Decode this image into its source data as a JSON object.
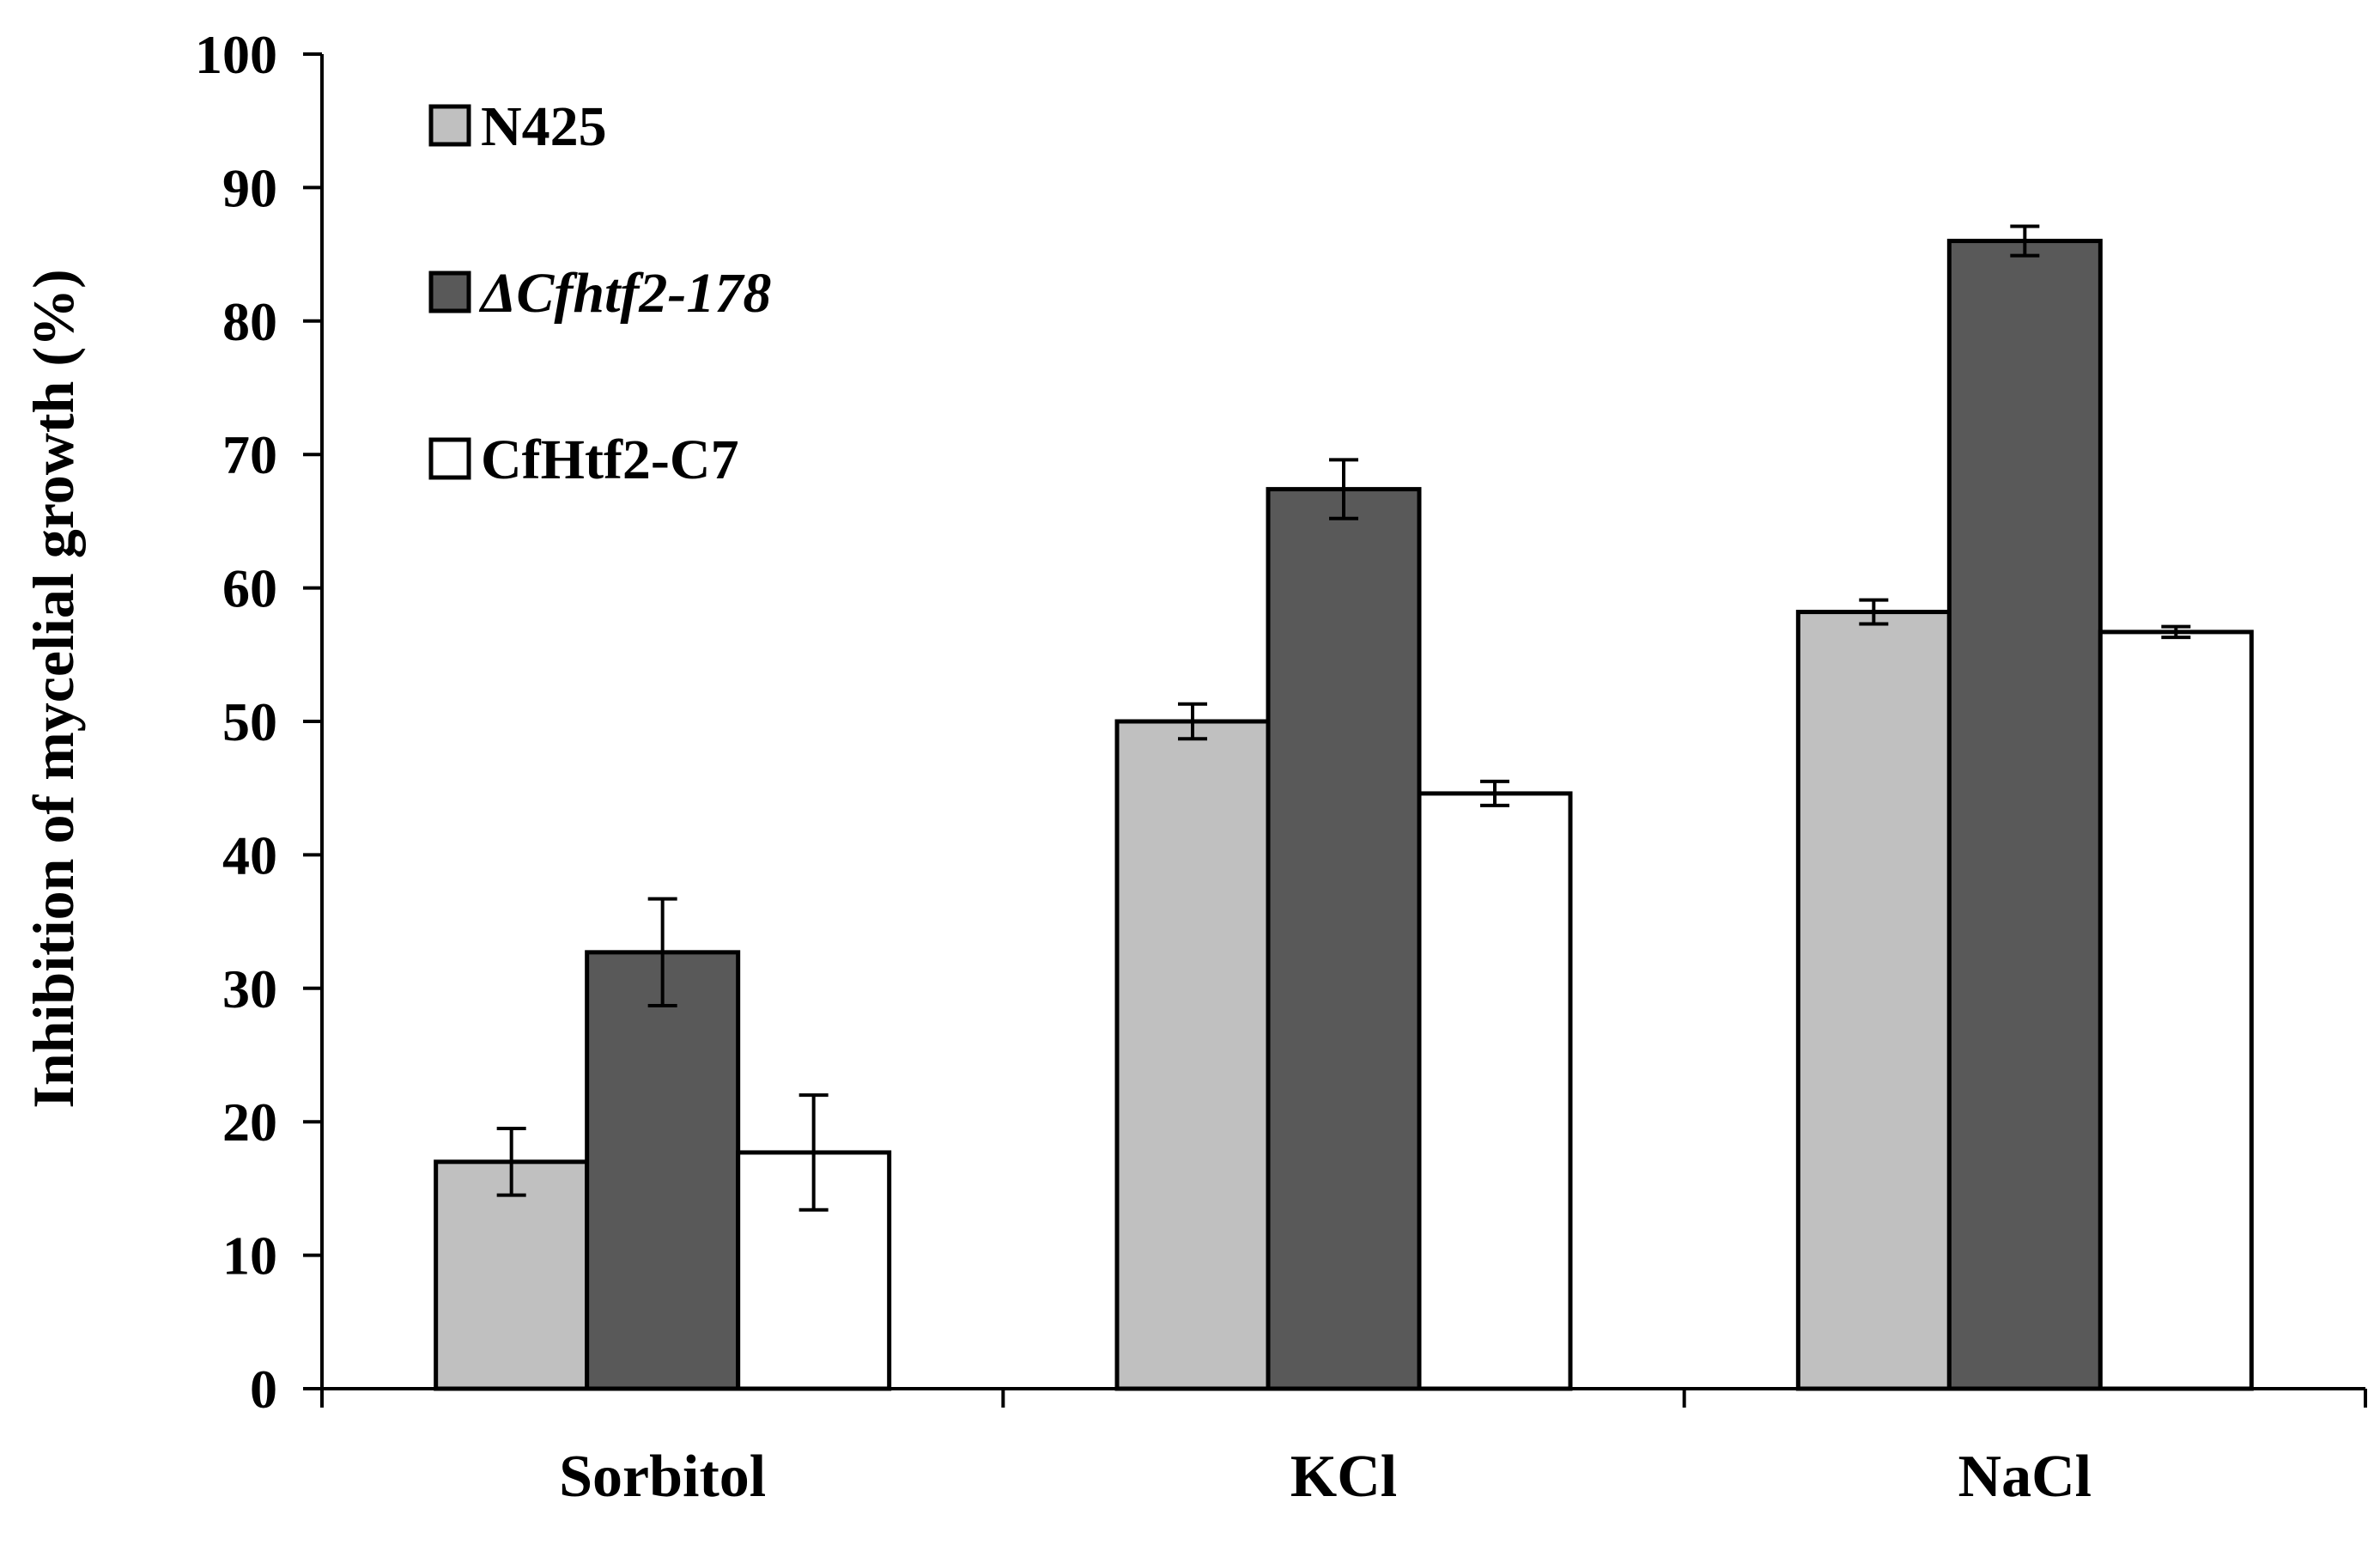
{
  "chart_data": {
    "type": "bar",
    "title": "",
    "xlabel": "",
    "ylabel": "Inhibition of mycelial growth (%)",
    "ylim": [
      0,
      100
    ],
    "yticks": [
      0,
      10,
      20,
      30,
      40,
      50,
      60,
      70,
      80,
      90,
      100
    ],
    "categories": [
      "Sorbitol",
      "KCl",
      "NaCl"
    ],
    "series": [
      {
        "name": "N425",
        "color": "#c0c0c0",
        "italic": false,
        "values": [
          17.0,
          50.0,
          58.2
        ],
        "errors": [
          2.5,
          1.3,
          0.9
        ]
      },
      {
        "name": "ΔCfhtf2-178",
        "color": "#595959",
        "italic": true,
        "values": [
          32.7,
          67.4,
          86.0
        ],
        "errors": [
          4.0,
          2.2,
          1.1
        ]
      },
      {
        "name": "CfHtf2-C7",
        "color": "#ffffff",
        "italic": false,
        "values": [
          17.7,
          44.6,
          56.7
        ],
        "errors": [
          4.3,
          0.9,
          0.4
        ]
      }
    ],
    "legend_position": "top-left",
    "grid": false
  }
}
